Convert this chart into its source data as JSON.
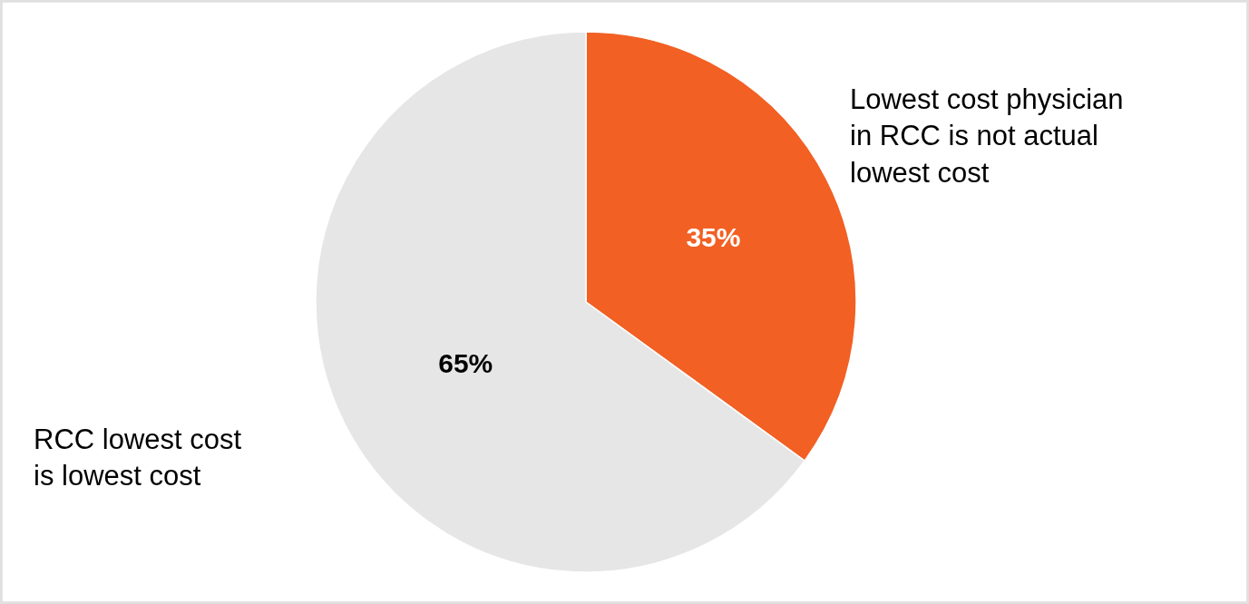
{
  "chart_data": {
    "type": "pie",
    "categories": [
      "Lowest cost physician\nin RCC is not actual\nlowest cost",
      "RCC lowest cost\nis lowest cost"
    ],
    "values": [
      35,
      65
    ],
    "colors": [
      "#f26024",
      "#e6e6e6"
    ],
    "value_labels": [
      "35%",
      "65%"
    ],
    "legend": false
  }
}
